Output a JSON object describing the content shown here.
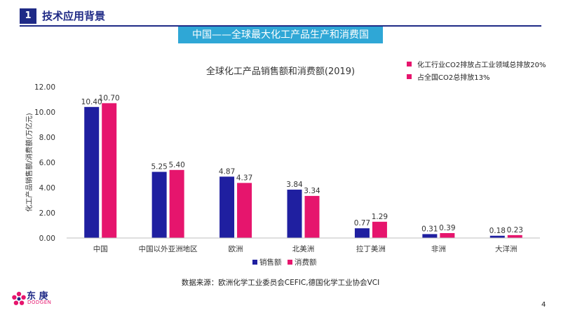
{
  "header": {
    "section_number": "1",
    "section_title": "技术应用背景",
    "banner": "中国——全球最大化工产品生产和消费国"
  },
  "chart_data": {
    "type": "bar",
    "title": "全球化工产品销售额和消费额(2019)",
    "ylabel": "化工产品销售额/消费额(万亿元)",
    "xlabel": "",
    "ylim": [
      0,
      12
    ],
    "yticks": [
      "0.00",
      "2.00",
      "4.00",
      "6.00",
      "8.00",
      "10.00",
      "12.00"
    ],
    "categories": [
      "中国",
      "中国以外亚洲地区",
      "欧洲",
      "北美洲",
      "拉丁美洲",
      "非洲",
      "大洋洲"
    ],
    "series": [
      {
        "name": "销售额",
        "color": "#1f1fa0",
        "values": [
          10.4,
          5.25,
          4.87,
          3.84,
          0.77,
          0.31,
          0.18
        ],
        "labels": [
          "10.40",
          "5.25",
          "4.87",
          "3.84",
          "0.77",
          "0.31",
          "0.18"
        ]
      },
      {
        "name": "消费额",
        "color": "#e6156d",
        "values": [
          10.7,
          5.4,
          4.37,
          3.34,
          1.29,
          0.39,
          0.23
        ],
        "labels": [
          "10.70",
          "5.40",
          "4.37",
          "3.34",
          "1.29",
          "0.39",
          "0.23"
        ]
      }
    ],
    "legend_position": "bottom",
    "grid": false
  },
  "notes": [
    "化工行业CO2排放占工业领域总排放20%",
    "占全国CO2总排放13%"
  ],
  "source": "数据来源：欧洲化学工业委员会CEFIC,德国化学工业协会VCI",
  "page_number": "4",
  "logo": {
    "name": "东 庚",
    "sub": "DODGEN"
  },
  "colors": {
    "brand": "#1f2a86",
    "accent": "#e6156d",
    "banner": "#2fa7d6"
  }
}
